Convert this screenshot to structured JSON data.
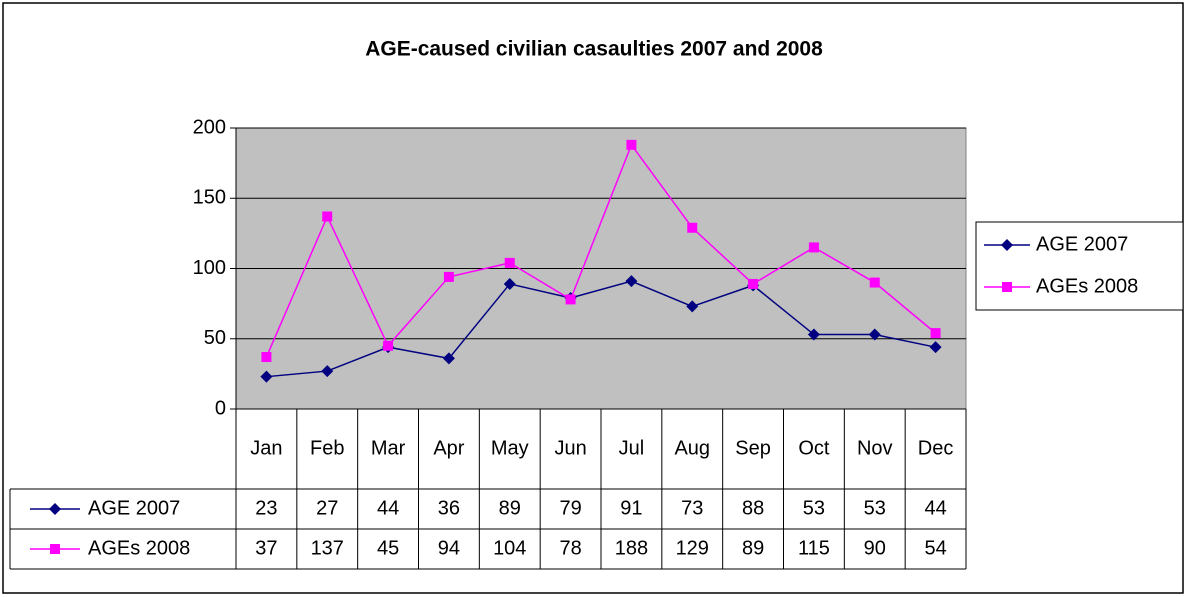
{
  "chart_data": {
    "type": "line",
    "title": "AGE-caused civilian casaulties 2007 and 2008",
    "categories": [
      "Jan",
      "Feb",
      "Mar",
      "Apr",
      "May",
      "Jun",
      "Jul",
      "Aug",
      "Sep",
      "Oct",
      "Nov",
      "Dec"
    ],
    "series": [
      {
        "name": "AGE 2007",
        "color": "#000080",
        "marker": "diamond",
        "values": [
          23,
          27,
          44,
          36,
          89,
          79,
          91,
          73,
          88,
          53,
          53,
          44
        ]
      },
      {
        "name": "AGEs 2008",
        "color": "#ff00ff",
        "marker": "square",
        "values": [
          37,
          137,
          45,
          94,
          104,
          78,
          188,
          129,
          89,
          115,
          90,
          54
        ]
      }
    ],
    "ylim": [
      0,
      200
    ],
    "yticks": [
      0,
      50,
      100,
      150,
      200
    ],
    "grid": true,
    "legend": "right",
    "plot_background": "#c0c0c0"
  }
}
